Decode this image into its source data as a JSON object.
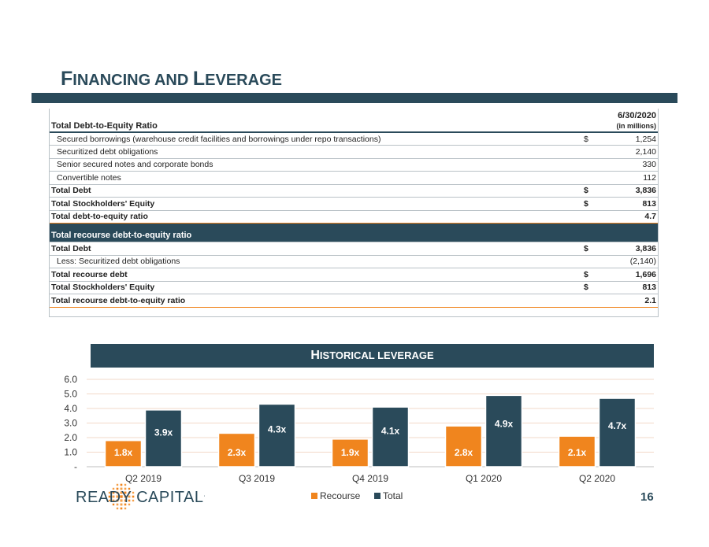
{
  "page": {
    "title_first_big": "F",
    "title_first_rest": "INANCING AND ",
    "title_second_big": "L",
    "title_second_rest": "EVERAGE",
    "page_number": "16"
  },
  "table": {
    "header_label": "Total Debt-to-Equity Ratio",
    "header_date": "6/30/2020",
    "header_units": "(in millions)",
    "rows": [
      {
        "label": "Secured borrowings (warehouse credit facilities and borrowings under repo transactions)",
        "cur": "$",
        "value": "1,254"
      },
      {
        "label": "Securitized debt obligations",
        "cur": "",
        "value": "2,140"
      },
      {
        "label": "Senior secured notes and corporate bonds",
        "cur": "",
        "value": "330"
      },
      {
        "label": "Convertible notes",
        "cur": "",
        "value": "112"
      },
      {
        "label": "Total Debt",
        "cur": "$",
        "value": "3,836"
      },
      {
        "label": "Total Stockholders' Equity",
        "cur": "$",
        "value": "813"
      },
      {
        "label": "Total debt-to-equity ratio",
        "cur": "",
        "value": "4.7"
      }
    ],
    "section2_label": "Total recourse debt-to-equity ratio",
    "rows2": [
      {
        "label": "Total Debt",
        "cur": "$",
        "value": "3,836"
      },
      {
        "label": "Less: Securitized debt obligations",
        "cur": "",
        "value": "(2,140)"
      },
      {
        "label": "Total recourse debt",
        "cur": "$",
        "value": "1,696"
      },
      {
        "label": "Total Stockholders' Equity",
        "cur": "$",
        "value": "813"
      },
      {
        "label": "Total recourse debt-to-equity ratio",
        "cur": "",
        "value": "2.1"
      }
    ]
  },
  "chart_banner": {
    "first_big": "H",
    "rest": "ISTORICAL LEVERAGE"
  },
  "logo": {
    "name": "READY CAPITAL",
    "mark": "."
  },
  "colors": {
    "navy": "#2a4a5a",
    "orange": "#f0851e",
    "grid": "#f2d9c8"
  },
  "chart_data": {
    "type": "bar",
    "title": "Historical leverage",
    "categories": [
      "Q2 2019",
      "Q3 2019",
      "Q4 2019",
      "Q1 2020",
      "Q2 2020"
    ],
    "series": [
      {
        "name": "Recourse",
        "values": [
          1.8,
          2.3,
          1.9,
          2.8,
          2.1
        ],
        "labels": [
          "1.8x",
          "2.3x",
          "1.9x",
          "2.8x",
          "2.1x"
        ],
        "color": "#f0851e"
      },
      {
        "name": "Total",
        "values": [
          3.9,
          4.3,
          4.1,
          4.9,
          4.7
        ],
        "labels": [
          "3.9x",
          "4.3x",
          "4.1x",
          "4.9x",
          "4.7x"
        ],
        "color": "#2a4a5a"
      }
    ],
    "yticks": [
      "-",
      "1.0",
      "2.0",
      "3.0",
      "4.0",
      "5.0",
      "6.0"
    ],
    "ylim": [
      0,
      6
    ],
    "grid": true,
    "legend": "bottom-center"
  }
}
